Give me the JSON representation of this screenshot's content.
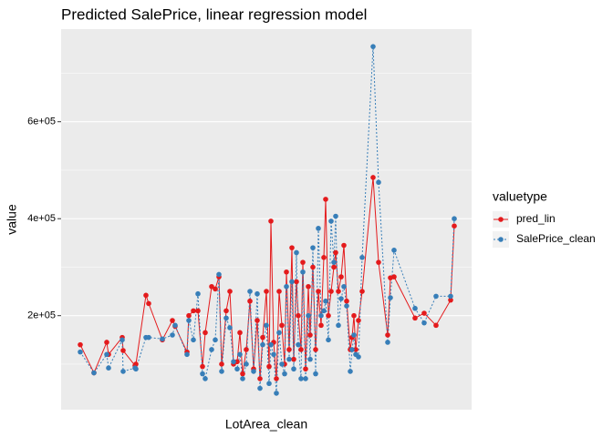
{
  "chart_data": {
    "type": "line",
    "title": "Predicted SalePrice, linear regression model",
    "x_label": "LotArea_clean",
    "y_label": "value",
    "legend_title": "valuetype",
    "legend": "right",
    "x": [
      2050,
      2800,
      3500,
      3600,
      4350,
      4400,
      5050,
      5100,
      5650,
      5800,
      6550,
      7100,
      7250,
      7900,
      8000,
      8250,
      8500,
      8750,
      8900,
      9250,
      9450,
      9650,
      9800,
      10050,
      10250,
      10450,
      10650,
      10800,
      10950,
      11150,
      11350,
      11550,
      11750,
      11900,
      12050,
      12250,
      12400,
      12500,
      12650,
      12800,
      12950,
      13100,
      13250,
      13350,
      13500,
      13650,
      13750,
      13900,
      14000,
      14150,
      14250,
      14400,
      14550,
      14650,
      14800,
      14950,
      15100,
      15250,
      15400,
      15500,
      15650,
      15800,
      15950,
      16050,
      16200,
      16350,
      16500,
      16650,
      16850,
      16950,
      17050,
      17150,
      17300,
      17500,
      18100,
      18400,
      18900,
      19050,
      19250,
      20400,
      20900,
      21550,
      22350,
      22550
    ],
    "series": [
      {
        "name": "pred_lin",
        "color": "#e41a1c",
        "linetype": "solid",
        "values": [
          140000,
          82000,
          145000,
          120000,
          155000,
          128000,
          97000,
          100000,
          242000,
          225000,
          150000,
          190000,
          178000,
          125000,
          200000,
          210000,
          210000,
          95000,
          165000,
          260000,
          255000,
          280000,
          100000,
          210000,
          250000,
          100000,
          105000,
          165000,
          80000,
          130000,
          230000,
          90000,
          190000,
          70000,
          155000,
          250000,
          95000,
          395000,
          145000,
          70000,
          250000,
          180000,
          100000,
          290000,
          130000,
          340000,
          110000,
          270000,
          200000,
          130000,
          310000,
          90000,
          260000,
          160000,
          300000,
          130000,
          250000,
          180000,
          320000,
          440000,
          200000,
          250000,
          300000,
          330000,
          250000,
          280000,
          345000,
          230000,
          130000,
          155000,
          200000,
          130000,
          190000,
          250000,
          485000,
          310000,
          160000,
          278000,
          280000,
          195000,
          205000,
          180000,
          232000,
          385000
        ]
      },
      {
        "name": "SalePrice_clean",
        "color": "#377eb8",
        "linetype": "dotted",
        "values": [
          125000,
          82000,
          120000,
          92000,
          150000,
          85000,
          92000,
          90000,
          155000,
          155000,
          152000,
          160000,
          180000,
          120000,
          190000,
          150000,
          245000,
          80000,
          70000,
          130000,
          150000,
          285000,
          85000,
          195000,
          175000,
          105000,
          90000,
          120000,
          70000,
          100000,
          250000,
          85000,
          245000,
          50000,
          140000,
          180000,
          60000,
          140000,
          120000,
          40000,
          165000,
          100000,
          80000,
          260000,
          110000,
          270000,
          90000,
          330000,
          140000,
          70000,
          290000,
          70000,
          200000,
          110000,
          340000,
          80000,
          380000,
          200000,
          210000,
          230000,
          150000,
          395000,
          310000,
          405000,
          180000,
          235000,
          260000,
          220000,
          85000,
          130000,
          160000,
          120000,
          115000,
          320000,
          755000,
          475000,
          145000,
          237000,
          335000,
          215000,
          185000,
          240000,
          240000,
          400000
        ]
      }
    ],
    "xlim": [
      1000,
      23500
    ],
    "ylim": [
      6000,
      791000
    ],
    "yticks": [
      {
        "value": 200000,
        "label": "2e+05"
      },
      {
        "value": 400000,
        "label": "4e+05"
      },
      {
        "value": 600000,
        "label": "6e+05"
      }
    ],
    "minor_yticks": [
      100000,
      300000,
      500000,
      700000
    ],
    "grid": true
  }
}
